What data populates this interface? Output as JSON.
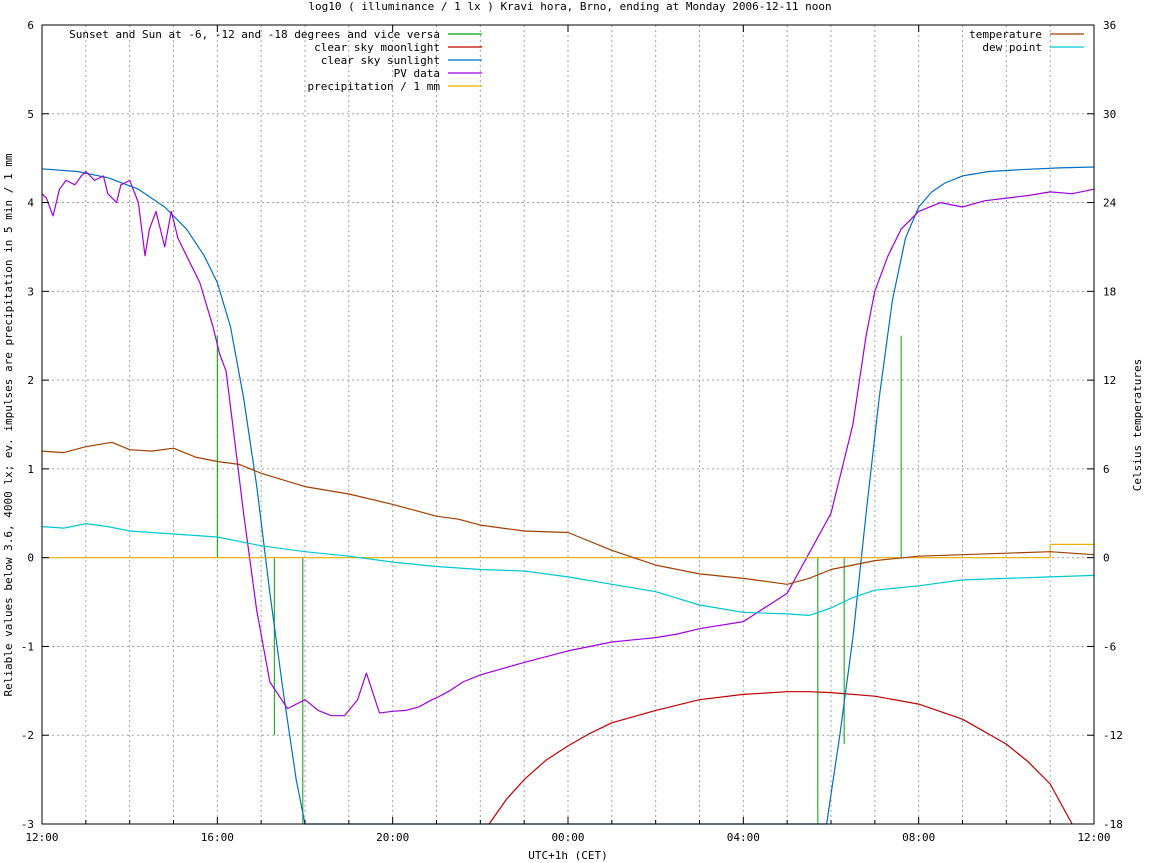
{
  "chart_data": {
    "type": "line",
    "title": "log10 ( illuminance / 1 lx ) Kravi hora, Brno, ending at Monday 2006-12-11 noon",
    "xlabel": "UTC+1h (CET)",
    "ylabel": "Reliable values below 3.6, 4000 lx; ev. impulses are precipitation in 5 min / 1 mm",
    "y2label": "Celsius temperatures",
    "xlim": [
      0,
      24
    ],
    "ylim": [
      -3,
      6
    ],
    "y2lim": [
      -18,
      36
    ],
    "xticks": [
      0,
      4,
      8,
      12,
      16,
      20,
      24
    ],
    "xtick_labels": [
      "12:00",
      "16:00",
      "20:00",
      "00:00",
      "04:00",
      "08:00",
      "12:00"
    ],
    "yticks": [
      -3,
      -2,
      -1,
      0,
      1,
      2,
      3,
      4,
      5,
      6
    ],
    "ytick_labels": [
      "-3",
      "-2",
      "-1",
      "0",
      "1",
      "2",
      "3",
      "4",
      "5",
      "6"
    ],
    "y2ticks": [
      -18,
      -12,
      -6,
      0,
      6,
      12,
      18,
      24,
      30,
      36
    ],
    "y2tick_labels": [
      "-18",
      "-12",
      "-6",
      "0",
      "6",
      "12",
      "18",
      "24",
      "30",
      "36"
    ],
    "grid": true,
    "legend_left": "top-left",
    "legend_right": "top-right",
    "series": [
      {
        "name": "Sunset and Sun at -6, -12 and -18 degrees and vice versa",
        "axis": "y",
        "color": "#00a000",
        "style": "impulses",
        "x": [
          4.0,
          5.3,
          5.95,
          17.7,
          18.3,
          19.6
        ],
        "y": [
          2.5,
          -2.0,
          -3.0,
          -3.0,
          -2.1,
          2.5
        ]
      },
      {
        "name": "clear sky moonlight",
        "axis": "y",
        "color": "#c00000",
        "x": [
          10.2,
          10.6,
          11.0,
          11.5,
          12.0,
          12.5,
          13.0,
          14.0,
          15.0,
          16.0,
          17.0,
          17.5,
          18.0,
          19.0,
          20.0,
          21.0,
          22.0,
          22.5,
          23.0,
          23.5
        ],
        "y": [
          -3.0,
          -2.72,
          -2.5,
          -2.28,
          -2.12,
          -1.98,
          -1.86,
          -1.72,
          -1.6,
          -1.54,
          -1.51,
          -1.51,
          -1.52,
          -1.56,
          -1.65,
          -1.82,
          -2.1,
          -2.3,
          -2.55,
          -3.0
        ]
      },
      {
        "name": "clear sky sunlight",
        "axis": "y",
        "color": "#0070c0",
        "x": [
          0.0,
          0.8,
          1.5,
          2.2,
          2.8,
          3.3,
          3.7,
          4.0,
          4.3,
          4.6,
          4.9,
          5.2,
          5.5,
          5.8,
          6.0,
          17.9,
          18.2,
          18.5,
          18.8,
          19.1,
          19.4,
          19.7,
          20.0,
          20.3,
          20.6,
          21.0,
          21.6,
          22.3,
          23.2,
          24.0
        ],
        "y": [
          4.38,
          4.35,
          4.28,
          4.15,
          3.95,
          3.7,
          3.4,
          3.1,
          2.6,
          1.8,
          0.8,
          -0.4,
          -1.5,
          -2.5,
          -3.0,
          -3.0,
          -2.0,
          -0.9,
          0.5,
          1.8,
          2.9,
          3.6,
          3.95,
          4.12,
          4.22,
          4.3,
          4.35,
          4.37,
          4.39,
          4.4
        ]
      },
      {
        "name": "PV data",
        "axis": "y",
        "color": "#a000e0",
        "x": [
          0.0,
          0.1,
          0.25,
          0.4,
          0.55,
          0.75,
          0.9,
          1.0,
          1.2,
          1.4,
          1.5,
          1.7,
          1.8,
          2.0,
          2.2,
          2.35,
          2.45,
          2.6,
          2.8,
          2.95,
          3.1,
          3.3,
          3.6,
          3.9,
          4.05,
          4.2,
          4.35,
          4.6,
          4.9,
          5.2,
          5.6,
          6.0,
          6.3,
          6.6,
          6.9,
          7.2,
          7.4,
          7.7,
          8.0,
          8.3,
          8.6,
          8.9,
          9.0,
          9.3,
          9.6,
          10.0,
          11.0,
          12.0,
          13.0,
          14.0,
          14.5,
          15.0,
          16.0,
          17.0,
          18.0,
          18.5,
          18.8,
          19.0,
          19.3,
          19.6,
          20.0,
          20.5,
          21.0,
          21.5,
          22.0,
          22.5,
          23.0,
          23.5,
          24.0
        ],
        "y": [
          4.1,
          4.05,
          3.85,
          4.15,
          4.25,
          4.2,
          4.3,
          4.35,
          4.25,
          4.3,
          4.1,
          4.0,
          4.2,
          4.25,
          4.0,
          3.4,
          3.7,
          3.9,
          3.5,
          3.9,
          3.6,
          3.4,
          3.1,
          2.6,
          2.3,
          2.1,
          1.5,
          0.5,
          -0.6,
          -1.4,
          -1.7,
          -1.6,
          -1.72,
          -1.78,
          -1.78,
          -1.6,
          -1.3,
          -1.75,
          -1.73,
          -1.72,
          -1.68,
          -1.6,
          -1.58,
          -1.5,
          -1.4,
          -1.32,
          -1.18,
          -1.05,
          -0.95,
          -0.9,
          -0.86,
          -0.8,
          -0.72,
          -0.4,
          0.5,
          1.5,
          2.5,
          3.0,
          3.4,
          3.7,
          3.9,
          4.0,
          3.95,
          4.02,
          4.05,
          4.08,
          4.12,
          4.1,
          4.15
        ]
      },
      {
        "name": "precipitation / 1 mm",
        "axis": "y",
        "color": "#f0b000",
        "style": "steps",
        "x": [
          0.0,
          23.0,
          23.0,
          24.0
        ],
        "y": [
          0.0,
          0.0,
          0.15,
          0.15
        ]
      },
      {
        "name": "temperature",
        "axis": "y2",
        "color": "#a04000",
        "x": [
          0.0,
          0.5,
          1.0,
          1.6,
          2.0,
          2.5,
          3.0,
          3.5,
          4.0,
          4.5,
          5.0,
          6.0,
          7.0,
          8.0,
          9.0,
          9.5,
          10.0,
          11.0,
          12.0,
          13.0,
          14.0,
          15.0,
          16.0,
          16.5,
          17.0,
          17.5,
          18.0,
          19.0,
          20.0,
          21.0,
          22.0,
          23.0,
          24.0
        ],
        "y": [
          7.2,
          7.1,
          7.5,
          7.8,
          7.3,
          7.2,
          7.4,
          6.8,
          6.5,
          6.3,
          5.7,
          4.8,
          4.3,
          3.6,
          2.8,
          2.6,
          2.2,
          1.8,
          1.7,
          0.5,
          -0.5,
          -1.1,
          -1.4,
          -1.6,
          -1.8,
          -1.4,
          -0.8,
          -0.2,
          0.1,
          0.2,
          0.3,
          0.4,
          0.2
        ]
      },
      {
        "name": "dew point",
        "axis": "y2",
        "color": "#00c8d0",
        "x": [
          0.0,
          0.5,
          1.0,
          1.5,
          2.0,
          2.5,
          3.0,
          3.5,
          4.0,
          5.0,
          6.0,
          7.0,
          8.0,
          9.0,
          10.0,
          11.0,
          12.0,
          13.0,
          14.0,
          15.0,
          16.0,
          17.0,
          17.5,
          18.0,
          18.5,
          19.0,
          20.0,
          21.0,
          22.0,
          23.0,
          24.0
        ],
        "y": [
          2.1,
          2.0,
          2.3,
          2.1,
          1.8,
          1.7,
          1.6,
          1.5,
          1.4,
          0.8,
          0.4,
          0.1,
          -0.3,
          -0.6,
          -0.8,
          -0.9,
          -1.3,
          -1.8,
          -2.3,
          -3.2,
          -3.7,
          -3.8,
          -3.9,
          -3.4,
          -2.7,
          -2.2,
          -1.9,
          -1.5,
          -1.4,
          -1.3,
          -1.2
        ]
      }
    ]
  }
}
